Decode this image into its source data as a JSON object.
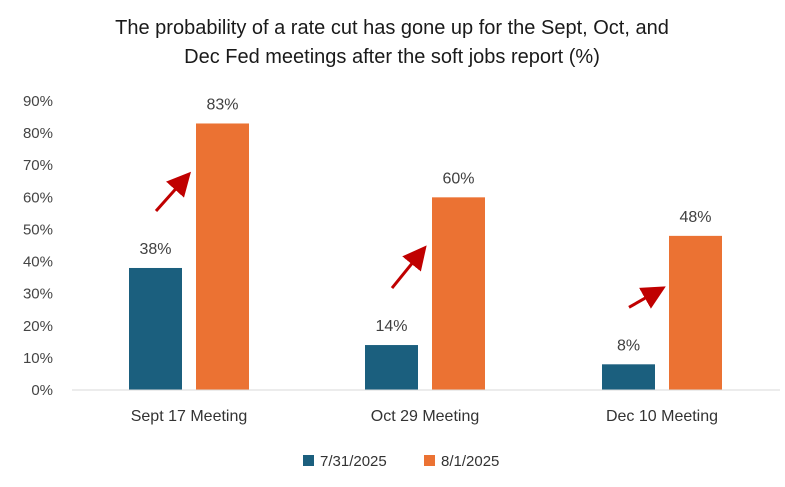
{
  "chart_data": {
    "type": "bar",
    "title_lines": [
      "The probability of a rate cut has gone up for the Sept, Oct, and",
      "Dec Fed meetings after the soft jobs report (%)"
    ],
    "categories": [
      "Sept 17 Meeting",
      "Oct 29 Meeting",
      "Dec 10 Meeting"
    ],
    "series": [
      {
        "name": "7/31/2025",
        "values": [
          38,
          14,
          8
        ],
        "labels": [
          "38%",
          "14%",
          "8%"
        ],
        "color": "#1b5f7e"
      },
      {
        "name": "8/1/2025",
        "values": [
          83,
          60,
          48
        ],
        "labels": [
          "83%",
          "60%",
          "48%"
        ],
        "color": "#eb7233"
      }
    ],
    "ylim": [
      0,
      90
    ],
    "yticks": [
      0,
      10,
      20,
      30,
      40,
      50,
      60,
      70,
      80,
      90
    ],
    "ytick_labels": [
      "0%",
      "10%",
      "20%",
      "30%",
      "40%",
      "50%",
      "60%",
      "70%",
      "80%",
      "90%"
    ],
    "xlabel": "",
    "ylabel": "",
    "grid": false,
    "legend_position": "bottom-center",
    "annotations": {
      "type": "arrow",
      "color": "#c00000",
      "meaning": "increase from 7/31/2025 to 8/1/2025"
    }
  }
}
